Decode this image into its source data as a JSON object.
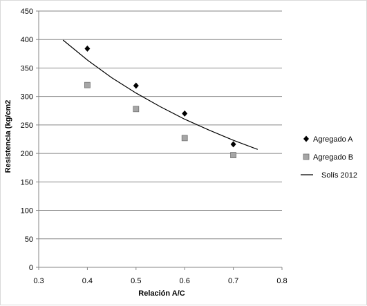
{
  "chart_data": {
    "type": "scatter",
    "title": "",
    "xlabel": "Relación  A/C",
    "ylabel": "Resistencia  (kg/cm2",
    "xlim": [
      0.3,
      0.8
    ],
    "ylim": [
      0,
      450
    ],
    "x_ticks": [
      "0.3",
      "0.4",
      "0.5",
      "0.6",
      "0.7",
      "0.8"
    ],
    "y_ticks": [
      "0",
      "50",
      "100",
      "150",
      "200",
      "250",
      "300",
      "350",
      "400",
      "450"
    ],
    "grid": "horizontal",
    "legend_position": "right",
    "series": [
      {
        "name": "Agregado A",
        "marker": "diamond",
        "color": "#000000",
        "x": [
          0.4,
          0.5,
          0.6,
          0.7
        ],
        "y": [
          384,
          319,
          270,
          216
        ]
      },
      {
        "name": "Agregado B",
        "marker": "square",
        "color": "#a6a6a6",
        "x": [
          0.4,
          0.5,
          0.6,
          0.7
        ],
        "y": [
          320,
          278,
          227,
          197
        ]
      },
      {
        "name": "Solís 2012",
        "marker": "line",
        "color": "#000000",
        "x": [
          0.35,
          0.4,
          0.45,
          0.5,
          0.55,
          0.6,
          0.65,
          0.7,
          0.75
        ],
        "y": [
          399,
          364,
          333,
          306,
          282,
          260,
          241,
          223,
          207
        ]
      }
    ]
  }
}
